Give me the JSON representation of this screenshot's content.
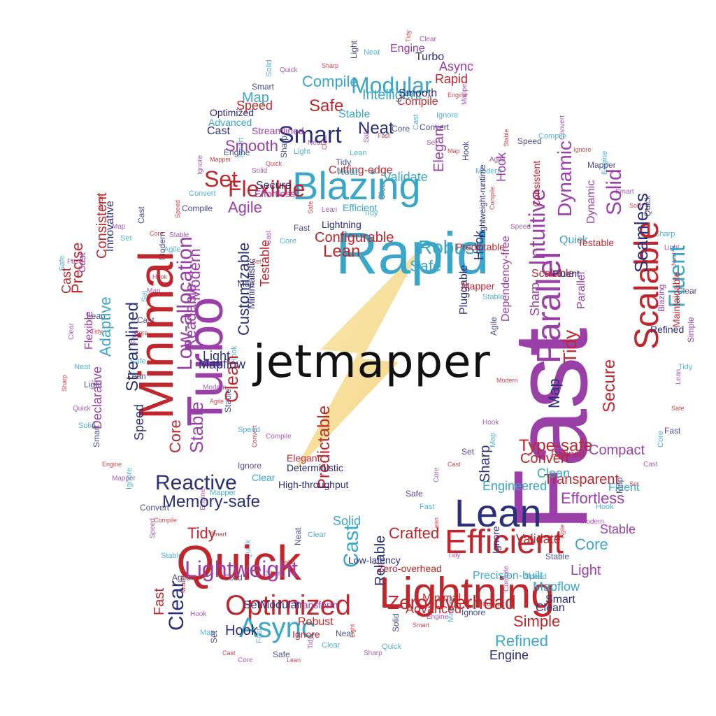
{
  "logo_text": "jetmapper",
  "logo_icon": "lightning-bolt-icon",
  "colors": {
    "red": "#c0272d",
    "navy": "#2b2f7a",
    "teal": "#3aa6c8",
    "purple": "#9a3fa8",
    "bolt": "#f7d98a",
    "text": "#111111"
  },
  "words": [
    {
      "t": "Fast",
      "c": "purple"
    },
    {
      "t": "Rapid",
      "c": "teal"
    },
    {
      "t": "Blazing",
      "c": "teal"
    },
    {
      "t": "Minimal",
      "c": "red"
    },
    {
      "t": "Turbo",
      "c": "purple"
    },
    {
      "t": "Quick",
      "c": "red"
    },
    {
      "t": "Lightning",
      "c": "red"
    },
    {
      "t": "Efficient",
      "c": "red"
    },
    {
      "t": "Lean",
      "c": "navy"
    },
    {
      "t": "Optimized",
      "c": "red"
    },
    {
      "t": "Lightweight",
      "c": "purple"
    },
    {
      "t": "Async",
      "c": "teal"
    },
    {
      "t": "Reactive",
      "c": "navy"
    },
    {
      "t": "Memory-safe",
      "c": "navy"
    },
    {
      "t": "Zero-overhead",
      "c": "red"
    },
    {
      "t": "Smart",
      "c": "navy"
    },
    {
      "t": "Neat",
      "c": "navy"
    },
    {
      "t": "Modular",
      "c": "teal"
    },
    {
      "t": "Intelligent",
      "c": "teal"
    },
    {
      "t": "Safe",
      "c": "red"
    },
    {
      "t": "Flexible",
      "c": "red"
    },
    {
      "t": "Smooth",
      "c": "purple"
    },
    {
      "t": "Set",
      "c": "red"
    },
    {
      "t": "Agile",
      "c": "purple"
    },
    {
      "t": "Robust",
      "c": "teal"
    },
    {
      "t": "Configurable",
      "c": "red"
    },
    {
      "t": "Lean",
      "c": "red"
    },
    {
      "t": "Intuitive",
      "c": "purple"
    },
    {
      "t": "Parallel",
      "c": "purple"
    },
    {
      "t": "Scalable",
      "c": "red"
    },
    {
      "t": "Fluent",
      "c": "teal"
    },
    {
      "t": "Seamless",
      "c": "navy"
    },
    {
      "t": "Solid",
      "c": "purple"
    },
    {
      "t": "Dynamic",
      "c": "purple"
    },
    {
      "t": "Tidy",
      "c": "red"
    },
    {
      "t": "Secure",
      "c": "red"
    },
    {
      "t": "Type-safe",
      "c": "red"
    },
    {
      "t": "Map",
      "c": "navy"
    },
    {
      "t": "Convert",
      "c": "red"
    },
    {
      "t": "Engineered",
      "c": "teal"
    },
    {
      "t": "Transparent",
      "c": "red"
    },
    {
      "t": "Compact",
      "c": "purple"
    },
    {
      "t": "Effortless",
      "c": "purple"
    },
    {
      "t": "Fluent",
      "c": "teal"
    },
    {
      "t": "Stable",
      "c": "purple"
    },
    {
      "t": "Core",
      "c": "teal"
    },
    {
      "t": "Light",
      "c": "purple"
    },
    {
      "t": "Refined",
      "c": "red"
    },
    {
      "t": "Sharp",
      "c": "navy"
    },
    {
      "t": "Crafted",
      "c": "red"
    },
    {
      "t": "Advanced",
      "c": "red"
    },
    {
      "t": "Mapflow",
      "c": "teal"
    },
    {
      "t": "Precision-built",
      "c": "teal"
    },
    {
      "t": "Validate",
      "c": "red"
    },
    {
      "t": "Simple",
      "c": "red"
    },
    {
      "t": "Refined",
      "c": "teal"
    },
    {
      "t": "Engine",
      "c": "navy"
    },
    {
      "t": "Clean",
      "c": "navy"
    },
    {
      "t": "Smart",
      "c": "navy"
    },
    {
      "t": "Predictable",
      "c": "red"
    },
    {
      "t": "Solid",
      "c": "teal"
    },
    {
      "t": "Cast",
      "c": "teal"
    },
    {
      "t": "Reliable",
      "c": "navy"
    },
    {
      "t": "Set",
      "c": "navy"
    },
    {
      "t": "Modular",
      "c": "navy"
    },
    {
      "t": "Transform",
      "c": "purple"
    },
    {
      "t": "Hook",
      "c": "navy"
    },
    {
      "t": "Robust",
      "c": "red"
    },
    {
      "t": "Ignore",
      "c": "red"
    },
    {
      "t": "Clear",
      "c": "navy"
    },
    {
      "t": "Fast",
      "c": "red"
    },
    {
      "t": "Tidy",
      "c": "red"
    },
    {
      "t": "Stable",
      "c": "purple"
    },
    {
      "t": "Core",
      "c": "red"
    },
    {
      "t": "Speed",
      "c": "navy"
    },
    {
      "t": "Streamlined",
      "c": "navy"
    },
    {
      "t": "Adaptive",
      "c": "teal"
    },
    {
      "t": "Precise",
      "c": "red"
    },
    {
      "t": "Consistent",
      "c": "red"
    },
    {
      "t": "Innovative",
      "c": "navy"
    },
    {
      "t": "Cast",
      "c": "red"
    },
    {
      "t": "Declarative",
      "c": "purple"
    },
    {
      "t": "Flexible",
      "c": "purple"
    },
    {
      "t": "Low-allocation",
      "c": "purple"
    },
    {
      "t": "Readable",
      "c": "purple"
    },
    {
      "t": "Clean",
      "c": "red"
    },
    {
      "t": "Customizable",
      "c": "navy"
    },
    {
      "t": "Testable",
      "c": "red"
    },
    {
      "t": "Mapflow",
      "c": "navy"
    },
    {
      "t": "Minimalistic",
      "c": "navy"
    },
    {
      "t": "Cutting-edge",
      "c": "red"
    },
    {
      "t": "Validate",
      "c": "teal"
    },
    {
      "t": "Elegant",
      "c": "purple"
    },
    {
      "t": "Hook",
      "c": "navy"
    },
    {
      "t": "Pluggable",
      "c": "navy"
    },
    {
      "t": "Compile",
      "c": "teal"
    },
    {
      "t": "Cast",
      "c": "navy"
    },
    {
      "t": "Light",
      "c": "navy"
    },
    {
      "t": "Modern",
      "c": "purple"
    },
    {
      "t": "Safe",
      "c": "teal"
    },
    {
      "t": "Streamlined",
      "c": "purple"
    },
    {
      "t": "Optimized",
      "c": "navy"
    },
    {
      "t": "Advanced",
      "c": "teal"
    },
    {
      "t": "Cast",
      "c": "navy"
    },
    {
      "t": "Secure",
      "c": "navy"
    },
    {
      "t": "Effortless",
      "c": "purple"
    },
    {
      "t": "Speed",
      "c": "red"
    },
    {
      "t": "Map",
      "c": "teal"
    },
    {
      "t": "Neat",
      "c": "teal"
    },
    {
      "t": "Efficient",
      "c": "teal"
    },
    {
      "t": "Sharp",
      "c": "purple"
    },
    {
      "t": "Dependency-free",
      "c": "purple"
    },
    {
      "t": "Quick",
      "c": "teal"
    },
    {
      "t": "Hook",
      "c": "purple"
    },
    {
      "t": "Mapper",
      "c": "red"
    },
    {
      "t": "Testable",
      "c": "red"
    },
    {
      "t": "Predictable",
      "c": "red"
    },
    {
      "t": "Lightning",
      "c": "navy"
    },
    {
      "t": "Engine",
      "c": "purple"
    },
    {
      "t": "Rapid",
      "c": "red"
    },
    {
      "t": "Async",
      "c": "purple"
    },
    {
      "t": "Turbo",
      "c": "navy"
    },
    {
      "t": "Stable",
      "c": "teal"
    },
    {
      "t": "Compile",
      "c": "red"
    },
    {
      "t": "Smooth",
      "c": "navy"
    },
    {
      "t": "Scalable",
      "c": "red"
    },
    {
      "t": "Fluent",
      "c": "navy"
    },
    {
      "t": "Parallel",
      "c": "purple"
    },
    {
      "t": "Dynamic",
      "c": "purple"
    },
    {
      "t": "Maintainable",
      "c": "red"
    },
    {
      "t": "Blazing",
      "c": "purple"
    },
    {
      "t": "Simple",
      "c": "purple"
    },
    {
      "t": "Refined",
      "c": "navy"
    },
    {
      "t": "Consistent",
      "c": "red"
    },
    {
      "t": "Lightweight-runtime",
      "c": "navy"
    },
    {
      "t": "Zero-overhead",
      "c": "red"
    },
    {
      "t": "Low-latency",
      "c": "navy"
    },
    {
      "t": "High-throughput",
      "c": "navy"
    },
    {
      "t": "Deterministic",
      "c": "navy"
    },
    {
      "t": "Minimal",
      "c": "red"
    },
    {
      "t": "Cast",
      "c": "purple"
    },
    {
      "t": "Elegant",
      "c": "red"
    },
    {
      "t": "Clear",
      "c": "teal"
    },
    {
      "t": "Clean",
      "c": "teal"
    },
    {
      "t": "Ignore",
      "c": "navy"
    }
  ]
}
